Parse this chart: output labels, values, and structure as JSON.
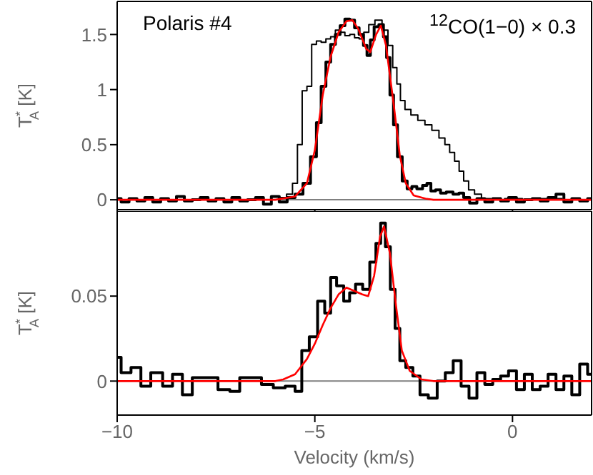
{
  "chart_data": [
    {
      "type": "step",
      "ylabel": "T$^{*}$$_{A}$ [K]",
      "xlim": [
        -10,
        2
      ],
      "xticks": [
        -10,
        -5,
        0
      ],
      "ylim": [
        -0.09,
        1.8
      ],
      "yticks": [
        0,
        0.5,
        1,
        1.5
      ],
      "tick_labels": "y",
      "annotations": [
        "Polaris #4",
        "$^{12}$CO(1−0) × 0.3"
      ],
      "ref_lines": [
        {
          "axis": "y",
          "value": 0,
          "color": "#808080"
        }
      ],
      "series": [
        {
          "color": "#000000",
          "x": [
            -10,
            -9.8,
            -9.6,
            -9.4,
            -9.2,
            -9,
            -8.8,
            -8.6,
            -8.4,
            -8.2,
            -8,
            -7.8,
            -7.6,
            -7.4,
            -7.2,
            -7,
            -6.8,
            -6.6,
            -6.4,
            -6.2,
            -6,
            -5.8,
            -5.6,
            -5.4,
            -5.2,
            -5.02,
            -4.9,
            -4.78,
            -4.66,
            -4.54,
            -4.42,
            -4.3,
            -4.18,
            -4.05,
            -3.94,
            -3.82,
            -3.72,
            -3.64,
            -3.55,
            -3.45,
            -3.31,
            -3.22,
            -3.15,
            -3.05,
            -2.97,
            -2.85,
            -2.73,
            -2.6,
            -2.49,
            -2.35,
            -2.2,
            -2.13,
            -2,
            -1.89,
            -1.75,
            -1.6,
            -1.41,
            -1.3,
            -1.17,
            -1,
            -0.8,
            -0.6,
            -0.4,
            -0.2,
            0,
            0.2,
            0.4,
            0.6,
            0.8,
            1,
            1.2,
            1.4,
            1.6,
            1.8,
            2
          ],
          "values": [
            0.01,
            -0.02,
            0.01,
            -0.01,
            0.02,
            -0.02,
            0.01,
            -0.01,
            0.03,
            -0.01,
            0,
            0.02,
            -0.01,
            0.01,
            -0.02,
            0.02,
            -0.01,
            0,
            0.02,
            -0.04,
            0.03,
            -0.02,
            0.02,
            0.05,
            0.15,
            0.39,
            0.7,
            1.03,
            1.25,
            1.41,
            1.5,
            1.58,
            1.64,
            1.63,
            1.56,
            1.5,
            1.4,
            1.31,
            1.45,
            1.57,
            1.59,
            1.48,
            1.29,
            0.95,
            0.68,
            0.39,
            0.17,
            0.1,
            0.12,
            0.1,
            0.13,
            0.15,
            0.08,
            0.09,
            0.06,
            0.07,
            0.05,
            0.06,
            0.02,
            -0.03,
            0.01,
            -0.02,
            0.01,
            -0.01,
            0.02,
            -0.02,
            0,
            0.01,
            -0.01,
            0.02,
            0.05,
            -0.02,
            0.01,
            -0.01,
            0.01
          ]
        },
        {
          "color": "#000000",
          "x": [
            -10,
            -6,
            -5.8,
            -5.63,
            -5.5,
            -5.38,
            -5.26,
            -5.14,
            -5.02,
            -4.9,
            -4.78,
            -4.66,
            -4.54,
            -4.42,
            -4.3,
            -4.18,
            -4.05,
            -3.94,
            -3.82,
            -3.7,
            -3.57,
            -3.39,
            -3.21,
            -3.09,
            -2.97,
            -2.88,
            -2.79,
            -2.65,
            -2.49,
            -2.3,
            -2.13,
            -1.95,
            -1.77,
            -1.65,
            -1.53,
            -1.4,
            -1.3,
            -1.17,
            -1.05,
            -0.87,
            -0.7,
            -0.4,
            0,
            0.5,
            1,
            1.5,
            2
          ],
          "values": [
            0,
            0,
            0.02,
            0.05,
            0.15,
            0.5,
            0.99,
            1.03,
            1.41,
            1.44,
            1.43,
            1.46,
            1.48,
            1.54,
            1.52,
            1.49,
            1.5,
            1.47,
            1.46,
            1.52,
            1.59,
            1.63,
            1.54,
            1.4,
            1.2,
            1.05,
            0.9,
            0.82,
            0.77,
            0.72,
            0.68,
            0.63,
            0.56,
            0.5,
            0.43,
            0.35,
            0.26,
            0.17,
            0.09,
            0.05,
            0.01,
            0,
            0.01,
            0,
            0.01,
            0,
            0
          ]
        },
        {
          "type": "line",
          "color": "#ff0000",
          "x": [
            -10,
            -6,
            -5.5,
            -5.2,
            -5,
            -4.8,
            -4.6,
            -4.4,
            -4.2,
            -4.05,
            -3.9,
            -3.7,
            -3.6,
            -3.45,
            -3.33,
            -3.2,
            -3,
            -2.85,
            -2.7,
            -2.5,
            -2.2,
            -2,
            2
          ],
          "values": [
            0,
            0,
            0.03,
            0.15,
            0.45,
            0.95,
            1.3,
            1.52,
            1.62,
            1.63,
            1.55,
            1.37,
            1.34,
            1.5,
            1.58,
            1.4,
            0.85,
            0.4,
            0.15,
            0.04,
            0.01,
            0,
            0
          ]
        }
      ]
    },
    {
      "type": "step",
      "xlabel": "Velocity (km/s)",
      "ylabel": "T$^{*}$$_{A}$ [K]",
      "xlim": [
        -10,
        2
      ],
      "xticks": [
        {
          "value": -10,
          "label": "−10"
        },
        {
          "value": -5,
          "label": "−5"
        },
        0
      ],
      "ylim": [
        -0.02,
        0.1
      ],
      "yticks": [
        0,
        0.05
      ],
      "ref_lines": [
        {
          "axis": "y",
          "value": 0,
          "color": "#808080"
        }
      ],
      "series": [
        {
          "color": "#000000",
          "x": [
            -10,
            -9.8,
            -9.5,
            -9.3,
            -9,
            -8.7,
            -8.5,
            -8.2,
            -8,
            -7.6,
            -7.3,
            -7,
            -6.8,
            -6.5,
            -6.2,
            -5.9,
            -5.6,
            -5.4,
            -5.26,
            -5.02,
            -4.84,
            -4.66,
            -4.54,
            -4.36,
            -4.18,
            -4.06,
            -3.88,
            -3.7,
            -3.52,
            -3.39,
            -3.28,
            -3.15,
            -3.03,
            -2.91,
            -2.79,
            -2.61,
            -2.43,
            -2.25,
            -2.01,
            -1.8,
            -1.6,
            -1.4,
            -1.2,
            -1,
            -0.8,
            -0.6,
            -0.4,
            -0.2,
            0,
            0.2,
            0.4,
            0.6,
            0.8,
            1,
            1.2,
            1.4,
            1.6,
            1.8,
            2
          ],
          "values": [
            0.014,
            0.005,
            0.008,
            -0.003,
            0.005,
            -0.003,
            0.004,
            -0.008,
            0.002,
            0.002,
            -0.005,
            -0.006,
            0.002,
            0.002,
            -0.002,
            -0.004,
            -0.003,
            -0.006,
            0.018,
            0.026,
            0.047,
            0.04,
            0.061,
            0.056,
            0.047,
            0.052,
            0.057,
            0.054,
            0.07,
            0.081,
            0.093,
            0.079,
            0.054,
            0.031,
            0.012,
            0.008,
            0.003,
            -0.008,
            -0.01,
            0,
            0.005,
            0.012,
            -0.003,
            -0.01,
            0.005,
            -0.002,
            0.001,
            0.003,
            0.006,
            -0.005,
            0.004,
            -0.005,
            -0.003,
            0.004,
            -0.005,
            0.003,
            -0.008,
            0.01,
            0.004
          ]
        },
        {
          "type": "line",
          "color": "#ff0000",
          "x": [
            -10,
            -6,
            -5.8,
            -5.5,
            -5.2,
            -5,
            -4.8,
            -4.6,
            -4.4,
            -4.2,
            -4,
            -3.8,
            -3.65,
            -3.5,
            -3.35,
            -3.25,
            -3.1,
            -2.95,
            -2.8,
            -2.6,
            -2.3,
            -2,
            2
          ],
          "values": [
            0,
            0,
            0.001,
            0.004,
            0.013,
            0.022,
            0.033,
            0.043,
            0.051,
            0.055,
            0.053,
            0.051,
            0.05,
            0.062,
            0.085,
            0.091,
            0.075,
            0.045,
            0.018,
            0.006,
            0.001,
            0,
            0
          ]
        }
      ]
    }
  ]
}
